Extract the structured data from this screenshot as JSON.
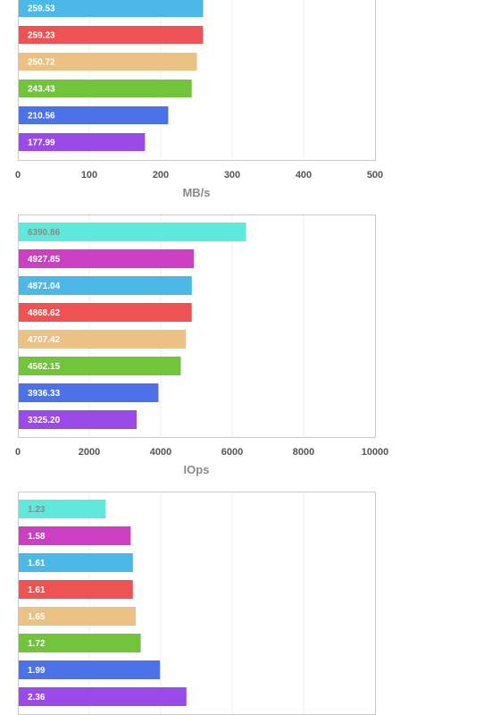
{
  "chart_data": [
    {
      "type": "bar",
      "orientation": "horizontal",
      "xlabel": "MB/s",
      "xlim": [
        0,
        500
      ],
      "xticks": [
        "0",
        "100",
        "200",
        "300",
        "400",
        "500"
      ],
      "grid": true,
      "values": [
        259.53,
        259.23,
        250.72,
        243.43,
        210.56,
        177.99
      ],
      "labels": [
        "259.53",
        "259.23",
        "250.72",
        "243.43",
        "210.56",
        "177.99"
      ],
      "colors": [
        "#4cb8e8",
        "#ee5253",
        "#ebc283",
        "#72c43a",
        "#4b72e8",
        "#9a4ae8"
      ]
    },
    {
      "type": "bar",
      "orientation": "horizontal",
      "xlabel": "IOps",
      "xlim": [
        0,
        10000
      ],
      "xticks": [
        "0",
        "2000",
        "4000",
        "6000",
        "8000",
        "10000"
      ],
      "grid": true,
      "values": [
        6390.86,
        4927.85,
        4871.04,
        4868.62,
        4707.42,
        4562.15,
        3936.33,
        3325.2
      ],
      "labels": [
        "6390.86",
        "4927.85",
        "4871.04",
        "4868.62",
        "4707.42",
        "4562.15",
        "3936.33",
        "3325.20"
      ],
      "colors": [
        "#5fe8dc",
        "#cc3ec2",
        "#4cb8e8",
        "#ee5253",
        "#ebc283",
        "#72c43a",
        "#4b72e8",
        "#9a4ae8"
      ]
    },
    {
      "type": "bar",
      "orientation": "horizontal",
      "xlabel": "",
      "xlim": [
        0,
        5
      ],
      "grid": true,
      "values": [
        1.23,
        1.58,
        1.61,
        1.61,
        1.65,
        1.72,
        1.99,
        2.36
      ],
      "labels": [
        "1.23",
        "1.58",
        "1.61",
        "1.61",
        "1.65",
        "1.72",
        "1.99",
        "2.36"
      ],
      "colors": [
        "#5fe8dc",
        "#cc3ec2",
        "#4cb8e8",
        "#ee5253",
        "#ebc283",
        "#72c43a",
        "#4b72e8",
        "#9a4ae8"
      ]
    }
  ]
}
